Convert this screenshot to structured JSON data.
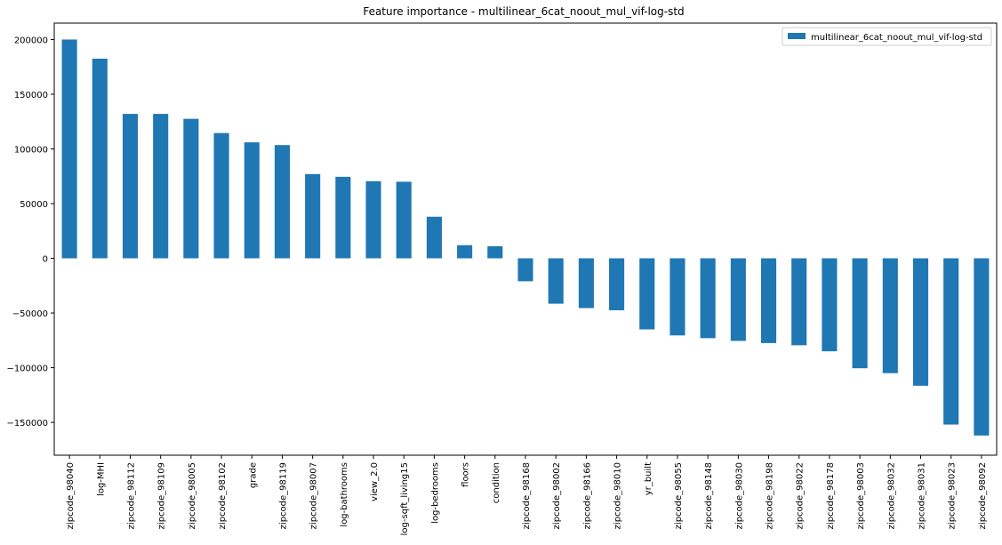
{
  "chart_data": {
    "type": "bar",
    "title": "Feature importance - multilinear_6cat_noout_mul_vif-log-std",
    "xlabel": "",
    "ylabel": "",
    "ylim": [
      -180000,
      215000
    ],
    "yticks": [
      -150000,
      -100000,
      -50000,
      0,
      50000,
      100000,
      150000,
      200000
    ],
    "ytick_labels": [
      "−150000",
      "−100000",
      "−50000",
      "0",
      "50000",
      "100000",
      "150000",
      "200000"
    ],
    "grid": false,
    "legend_position": "top-right",
    "categories": [
      "zipcode_98040",
      "log-MHI",
      "zipcode_98112",
      "zipcode_98109",
      "zipcode_98005",
      "zipcode_98102",
      "grade",
      "zipcode_98119",
      "zipcode_98007",
      "log-bathrooms",
      "view_2.0",
      "log-sqft_living15",
      "log-bedrooms",
      "floors",
      "condition",
      "zipcode_98168",
      "zipcode_98002",
      "zipcode_98166",
      "zipcode_98010",
      "yr_built",
      "zipcode_98055",
      "zipcode_98148",
      "zipcode_98030",
      "zipcode_98198",
      "zipcode_98022",
      "zipcode_98178",
      "zipcode_98003",
      "zipcode_98032",
      "zipcode_98031",
      "zipcode_98023",
      "zipcode_98092"
    ],
    "series": [
      {
        "name": "multilinear_6cat_noout_mul_vif-log-std",
        "color": "#1f77b4",
        "values": [
          200000,
          182500,
          132000,
          132000,
          127500,
          114500,
          106000,
          103500,
          77000,
          74500,
          70500,
          70000,
          38000,
          12000,
          11000,
          -21000,
          -41500,
          -45500,
          -47500,
          -65000,
          -70500,
          -73000,
          -75500,
          -77500,
          -79500,
          -85000,
          -100500,
          -105000,
          -116500,
          -152000,
          -162000
        ]
      }
    ]
  }
}
